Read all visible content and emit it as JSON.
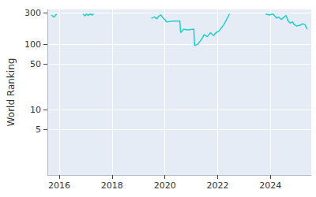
{
  "chart_data": {
    "type": "line",
    "ylabel": "World Ranking",
    "color": "#1fcfc8",
    "log": "y",
    "grid": true,
    "xlim": [
      2015.55,
      2025.55
    ],
    "xticks": [
      2016,
      2018,
      2020,
      2022,
      2024
    ],
    "ylim": [
      1,
      340
    ],
    "yticks": [
      5,
      10,
      50,
      100,
      300
    ],
    "x": [
      2015.7,
      2015.8,
      2015.9,
      2016.4,
      2016.9,
      2016.97,
      2017.03,
      2017.1,
      2017.17,
      2017.23,
      2017.3,
      2018.4,
      2019.49,
      2019.6,
      2019.7,
      2019.76,
      2019.85,
      2019.94,
      2020.0,
      2020.06,
      2020.3,
      2020.57,
      2020.6,
      2020.72,
      2020.85,
      2021.1,
      2021.13,
      2021.25,
      2021.4,
      2021.49,
      2021.61,
      2021.73,
      2021.85,
      2021.94,
      2022.06,
      2022.24,
      2022.45,
      2023.1,
      2023.82,
      2023.95,
      2024.1,
      2024.24,
      2024.3,
      2024.42,
      2024.5,
      2024.6,
      2024.66,
      2024.75,
      2024.84,
      2024.9,
      2024.99,
      2025.13,
      2025.22,
      2025.31,
      2025.4
    ],
    "values": [
      280,
      260,
      290,
      null,
      290,
      270,
      290,
      275,
      290,
      280,
      290,
      null,
      250,
      260,
      245,
      265,
      280,
      250,
      240,
      220,
      225,
      225,
      150,
      170,
      165,
      170,
      95,
      100,
      120,
      140,
      130,
      150,
      135,
      150,
      160,
      200,
      290,
      null,
      290,
      280,
      290,
      250,
      260,
      240,
      255,
      275,
      230,
      210,
      220,
      200,
      190,
      195,
      205,
      200,
      170
    ]
  }
}
